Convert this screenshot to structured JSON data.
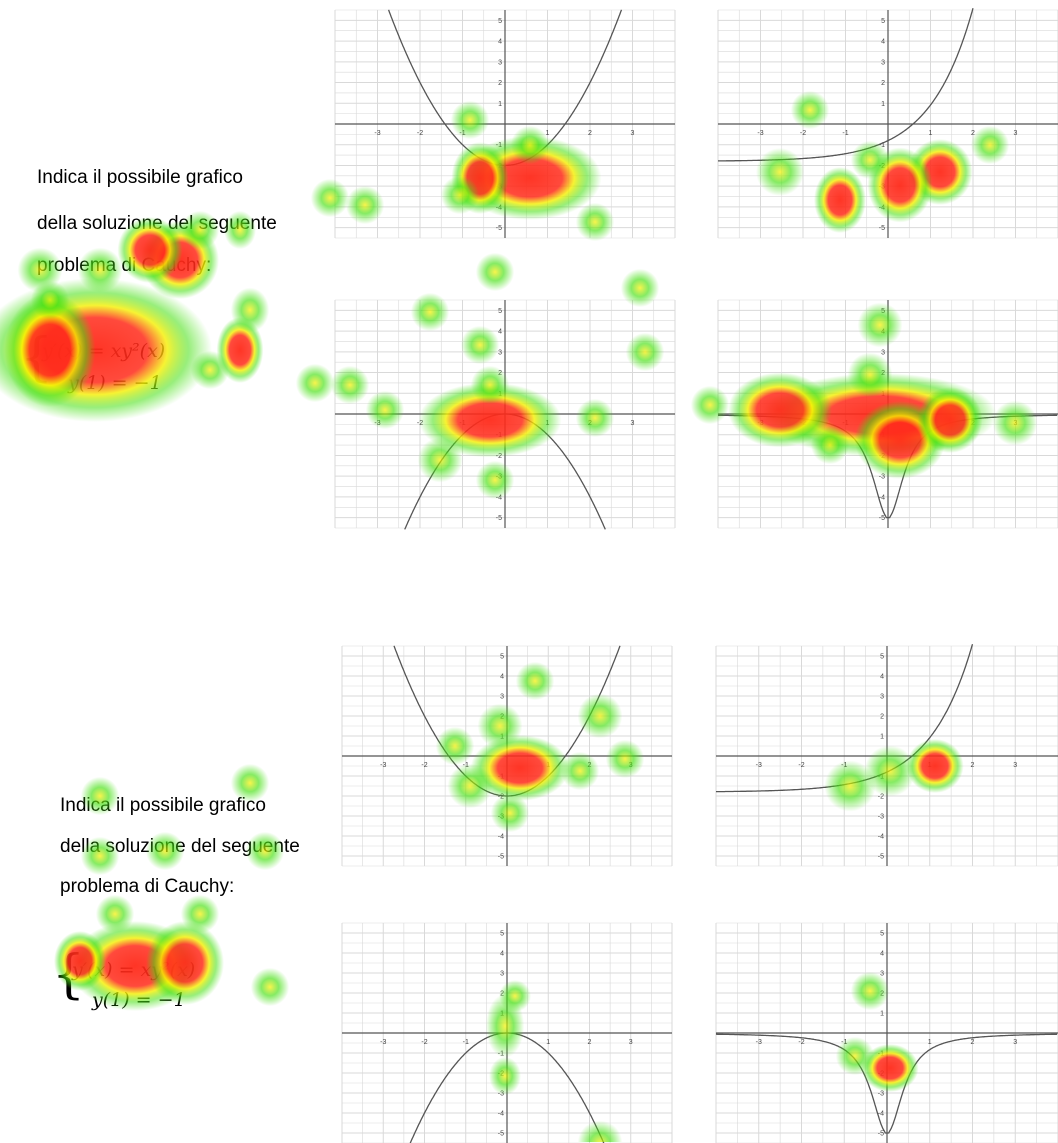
{
  "panels": [
    {
      "question": {
        "line1": "Indica il possibile grafico",
        "line2": "della soluzione del seguente",
        "line3": "problema di Cauchy:"
      },
      "equation": {
        "line1": "y′(x) = xy²(x)",
        "line2": "y(1) = −1"
      }
    },
    {
      "question": {
        "line1": "Indica il possibile grafico",
        "line2": "della soluzione del seguente",
        "line3": "problema di Cauchy:"
      },
      "equation": {
        "line1": "y′(x) = xy²(x)",
        "line2": "y(1) = −1"
      }
    }
  ],
  "graphs": {
    "x_ticks": [
      "-3",
      "-2",
      "-1",
      "0",
      "1",
      "2",
      "3"
    ],
    "y_ticks": [
      "5",
      "4",
      "3",
      "2",
      "1",
      "-1",
      "-2",
      "-3",
      "-4",
      "-5"
    ],
    "options": [
      {
        "name": "upward-parabola",
        "curve": "parabola-up"
      },
      {
        "name": "exponential",
        "curve": "exponential"
      },
      {
        "name": "downward-parabola",
        "curve": "parabola-down"
      },
      {
        "name": "cusp-curve",
        "curve": "cusp"
      }
    ]
  },
  "colors": {
    "grid": "#d9d9d9",
    "axis": "#555555",
    "curve": "#555555",
    "heat_hot": "#ff2a1a",
    "heat_mid": "#f5f000",
    "heat_cool": "#44e010"
  }
}
